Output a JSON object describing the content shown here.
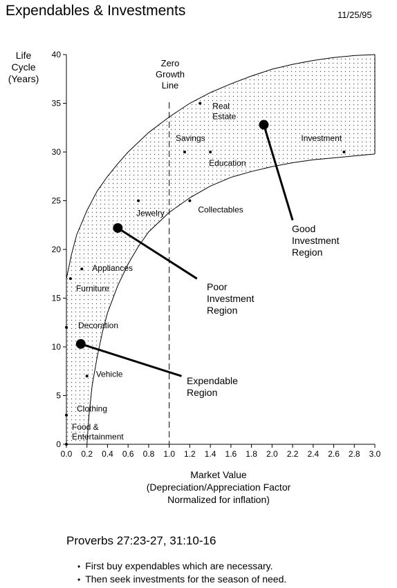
{
  "title": "Expendables & Investments",
  "date": "11/25/95",
  "y_axis_label_lines": [
    "Life",
    "Cycle",
    "(Years)"
  ],
  "x_axis_label_lines": [
    "Market Value",
    "(Depreciation/Appreciation Factor",
    "Normalized for inflation)"
  ],
  "zero_growth_label_lines": [
    "Zero",
    "Growth",
    "Line"
  ],
  "regions": {
    "good": [
      "Good",
      "Investment",
      "Region"
    ],
    "poor": [
      "Poor",
      "Investment",
      "Region"
    ],
    "expendable": [
      "Expendable",
      "Region"
    ]
  },
  "reference": "Proverbs 27:23-27, 31:10-16",
  "bullets": [
    "First buy expendables which are necessary.",
    "Then seek investments for the season of need."
  ],
  "chart_data": {
    "type": "scatter",
    "xlim": [
      0,
      3.0
    ],
    "ylim": [
      0,
      40
    ],
    "x_ticks": [
      "0.0",
      "0.2",
      "0.4",
      "0.6",
      "0.8",
      "1.0",
      "1.2",
      "1.4",
      "1.6",
      "1.8",
      "2.0",
      "2.2",
      "2.4",
      "2.6",
      "2.8",
      "3.0"
    ],
    "y_ticks": [
      "0",
      "5",
      "10",
      "15",
      "20",
      "25",
      "30",
      "35",
      "40"
    ],
    "zero_growth_x": 1.0,
    "points": [
      {
        "label": "Food & Entertainment",
        "x": 0.0,
        "y": 0
      },
      {
        "label": "Clothing",
        "x": 0.0,
        "y": 3
      },
      {
        "label": "Vehicle",
        "x": 0.2,
        "y": 7
      },
      {
        "label": "Decoration",
        "x": 0.0,
        "y": 12
      },
      {
        "label": "Furniture",
        "x": 0.04,
        "y": 17
      },
      {
        "label": "Appliances",
        "x": 0.15,
        "y": 18
      },
      {
        "label": "Jewelry",
        "x": 0.7,
        "y": 25
      },
      {
        "label": "Collectables",
        "x": 1.2,
        "y": 25
      },
      {
        "label": "Savings",
        "x": 1.15,
        "y": 30
      },
      {
        "label": "Education",
        "x": 1.4,
        "y": 30
      },
      {
        "label": "Real Estate",
        "x": 1.3,
        "y": 35
      },
      {
        "label": "Investment",
        "x": 2.7,
        "y": 30
      }
    ],
    "upper_boundary": [
      [
        0.0,
        17
      ],
      [
        0.05,
        19.5
      ],
      [
        0.1,
        21.5
      ],
      [
        0.2,
        24
      ],
      [
        0.3,
        26
      ],
      [
        0.4,
        27.5
      ],
      [
        0.5,
        28.8
      ],
      [
        0.6,
        30
      ],
      [
        0.7,
        31
      ],
      [
        0.8,
        32
      ],
      [
        1.0,
        33.6
      ],
      [
        1.2,
        35
      ],
      [
        1.4,
        36.1
      ],
      [
        1.6,
        37
      ],
      [
        1.8,
        37.8
      ],
      [
        2.0,
        38.5
      ],
      [
        2.2,
        39
      ],
      [
        2.4,
        39.4
      ],
      [
        2.6,
        39.7
      ],
      [
        2.8,
        39.9
      ],
      [
        3.0,
        40
      ]
    ],
    "lower_boundary": [
      [
        0.2,
        0
      ],
      [
        0.22,
        3
      ],
      [
        0.25,
        6
      ],
      [
        0.3,
        9
      ],
      [
        0.35,
        11.5
      ],
      [
        0.4,
        13.5
      ],
      [
        0.5,
        16.3
      ],
      [
        0.6,
        18.5
      ],
      [
        0.7,
        20.3
      ],
      [
        0.8,
        21.8
      ],
      [
        1.0,
        23.8
      ],
      [
        1.2,
        25.3
      ],
      [
        1.4,
        26.5
      ],
      [
        1.6,
        27.4
      ],
      [
        1.8,
        28
      ],
      [
        2.0,
        28.5
      ],
      [
        2.2,
        28.9
      ],
      [
        2.4,
        29.2
      ],
      [
        2.6,
        29.4
      ],
      [
        2.8,
        29.6
      ],
      [
        3.0,
        29.8
      ]
    ],
    "region_markers": [
      {
        "region": "good",
        "x": 1.92,
        "y": 32.8,
        "label_x": 2.2,
        "label_y": 23
      },
      {
        "region": "poor",
        "x": 0.5,
        "y": 22.2,
        "label_x": 1.27,
        "label_y": 17
      },
      {
        "region": "expendable",
        "x": 0.14,
        "y": 10.3,
        "label_x": 1.12,
        "label_y": 7
      }
    ]
  }
}
